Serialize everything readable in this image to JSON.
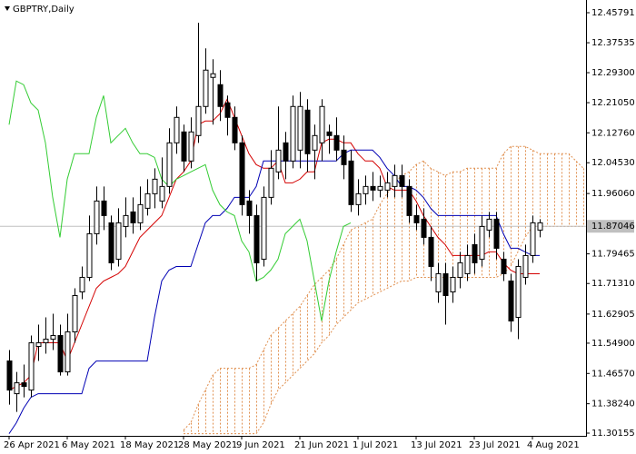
{
  "chart_data": {
    "type": "candlestick",
    "title": "GBPTRY,Daily",
    "categories": [
      "26 Apr 2021",
      null,
      null,
      null,
      null,
      null,
      null,
      null,
      "6 May 2021",
      null,
      null,
      null,
      null,
      null,
      null,
      null,
      "18 May 2021",
      null,
      null,
      null,
      null,
      null,
      null,
      null,
      "28 May 2021",
      null,
      null,
      null,
      null,
      null,
      null,
      null,
      "9 Jun 2021",
      null,
      null,
      null,
      null,
      null,
      null,
      null,
      "21 Jun 2021",
      null,
      null,
      null,
      null,
      null,
      null,
      null,
      "1 Jul 2021",
      null,
      null,
      null,
      null,
      null,
      null,
      null,
      "13 Jul 2021",
      null,
      null,
      null,
      null,
      null,
      null,
      null,
      "23 Jul 2021",
      null,
      null,
      null,
      null,
      null,
      null,
      null,
      "4 Aug 2021",
      null,
      null,
      null,
      null,
      null,
      null,
      null
    ],
    "open": [
      11.5,
      11.41,
      11.44,
      11.42,
      11.54,
      11.55,
      11.56,
      11.57,
      11.47,
      11.58,
      11.69,
      11.73,
      11.85,
      11.94,
      11.88,
      11.78,
      11.87,
      11.91,
      11.88,
      11.92,
      11.96,
      11.94,
      11.98,
      12.1,
      12.13,
      12.05,
      12.12,
      12.2,
      12.28,
      12.26,
      12.21,
      12.17,
      12.1,
      11.94,
      11.9,
      11.78,
      11.95,
      12.02,
      12.1,
      12.05,
      12.08,
      12.19,
      12.08,
      12.1,
      12.13,
      12.12,
      12.08,
      12.05,
      11.93,
      11.96,
      11.98,
      11.97,
      11.97,
      11.98,
      12.01,
      11.98,
      11.9,
      11.89,
      11.84,
      11.69,
      11.74,
      11.69,
      11.73,
      11.74,
      11.82,
      11.78,
      11.86,
      11.89,
      11.78,
      11.72,
      11.62,
      11.73,
      11.79,
      11.86,
      null,
      null,
      null,
      null,
      null,
      null
    ],
    "high": [
      11.53,
      11.47,
      11.49,
      11.57,
      11.6,
      11.62,
      11.63,
      11.6,
      11.63,
      11.7,
      11.76,
      11.9,
      11.98,
      11.98,
      11.9,
      11.92,
      11.95,
      11.95,
      11.98,
      12.0,
      12.03,
      12.06,
      12.14,
      12.2,
      12.15,
      12.17,
      12.43,
      12.36,
      12.33,
      12.3,
      12.23,
      12.2,
      12.12,
      11.97,
      11.93,
      11.98,
      12.08,
      12.2,
      12.13,
      12.23,
      12.24,
      12.22,
      12.15,
      12.22,
      12.15,
      12.17,
      12.12,
      12.08,
      12.0,
      12.01,
      12.02,
      12.01,
      12.02,
      12.04,
      12.04,
      12.0,
      11.93,
      11.92,
      11.87,
      11.77,
      11.77,
      11.76,
      11.8,
      11.82,
      11.85,
      11.9,
      11.91,
      11.91,
      11.8,
      11.74,
      11.78,
      11.82,
      11.9,
      11.89,
      null,
      null,
      null,
      null,
      null,
      null
    ],
    "low": [
      11.38,
      11.36,
      11.4,
      11.4,
      11.5,
      11.52,
      11.53,
      11.46,
      11.46,
      11.55,
      11.67,
      11.72,
      11.82,
      11.86,
      11.75,
      11.76,
      11.84,
      11.85,
      11.86,
      11.9,
      11.92,
      11.92,
      11.96,
      12.07,
      12.02,
      12.03,
      12.1,
      12.18,
      12.15,
      12.16,
      12.12,
      12.08,
      11.9,
      11.85,
      11.72,
      11.76,
      11.93,
      12.0,
      12.0,
      12.03,
      12.03,
      12.02,
      12.0,
      12.05,
      12.07,
      12.05,
      12.0,
      11.91,
      11.9,
      11.93,
      11.94,
      11.95,
      11.95,
      11.95,
      11.95,
      11.88,
      11.86,
      11.82,
      11.72,
      11.66,
      11.6,
      11.66,
      11.7,
      11.72,
      11.74,
      11.76,
      11.84,
      11.78,
      11.72,
      11.58,
      11.56,
      11.71,
      11.77,
      11.84,
      null,
      null,
      null,
      null,
      null,
      null
    ],
    "close": [
      11.42,
      11.44,
      11.43,
      11.55,
      11.55,
      11.56,
      11.57,
      11.47,
      11.58,
      11.68,
      11.73,
      11.85,
      11.94,
      11.9,
      11.77,
      11.88,
      11.9,
      11.88,
      11.93,
      11.96,
      12.0,
      11.98,
      12.1,
      12.17,
      12.05,
      12.13,
      12.2,
      12.3,
      12.29,
      12.2,
      12.17,
      12.1,
      11.93,
      11.9,
      11.77,
      11.95,
      12.03,
      12.08,
      12.05,
      12.2,
      12.2,
      12.07,
      12.12,
      12.2,
      12.12,
      12.08,
      12.04,
      11.93,
      11.96,
      11.98,
      11.97,
      11.98,
      11.99,
      12.01,
      11.98,
      11.9,
      11.88,
      11.84,
      11.76,
      11.74,
      11.68,
      11.73,
      11.77,
      11.79,
      11.77,
      11.87,
      11.89,
      11.81,
      11.74,
      11.61,
      11.76,
      11.79,
      11.88,
      11.88,
      null,
      null,
      null,
      null,
      null,
      null
    ],
    "up_color": "#ffffff",
    "down_color": "#000000",
    "series": [
      {
        "color": "#d40000",
        "values": [
          11.42,
          11.43,
          11.44,
          11.46,
          11.55,
          11.55,
          11.55,
          11.55,
          11.5,
          11.55,
          11.6,
          11.65,
          11.7,
          11.72,
          11.73,
          11.74,
          11.76,
          11.8,
          11.84,
          11.86,
          11.88,
          11.9,
          11.95,
          12.0,
          12.02,
          12.05,
          12.15,
          12.16,
          12.16,
          12.18,
          12.22,
          12.17,
          12.12,
          12.07,
          12.04,
          12.03,
          12.03,
          12.05,
          11.99,
          11.99,
          12.0,
          12.02,
          12.02,
          12.1,
          12.11,
          12.11,
          12.1,
          12.1,
          12.07,
          12.05,
          12.05,
          12.03,
          11.98,
          11.97,
          11.97,
          11.97,
          11.94,
          11.9,
          11.87,
          11.84,
          11.82,
          11.79,
          11.79,
          11.79,
          11.79,
          11.79,
          11.8,
          11.8,
          11.77,
          11.75,
          11.74,
          11.74,
          11.74,
          11.74,
          null,
          null,
          null,
          null,
          null,
          null
        ]
      },
      {
        "color": "#0000b4",
        "values": [
          11.3,
          11.33,
          11.37,
          11.4,
          11.41,
          11.41,
          11.41,
          11.41,
          11.41,
          11.41,
          11.41,
          11.48,
          11.5,
          11.5,
          11.5,
          11.5,
          11.5,
          11.5,
          11.5,
          11.5,
          11.62,
          11.72,
          11.75,
          11.76,
          11.76,
          11.76,
          11.82,
          11.88,
          11.9,
          11.9,
          11.92,
          11.95,
          11.95,
          11.95,
          11.98,
          12.05,
          12.05,
          12.05,
          12.05,
          12.05,
          12.05,
          12.05,
          12.05,
          12.05,
          12.05,
          12.05,
          12.07,
          12.08,
          12.08,
          12.08,
          12.08,
          12.06,
          12.03,
          12.01,
          11.98,
          11.98,
          11.97,
          11.95,
          11.92,
          11.9,
          11.9,
          11.9,
          11.9,
          11.9,
          11.9,
          11.9,
          11.9,
          11.9,
          11.85,
          11.81,
          11.81,
          11.8,
          11.79,
          11.79,
          null,
          null,
          null,
          null,
          null,
          null
        ]
      },
      {
        "color": "#33cc33",
        "values": [
          12.15,
          12.27,
          12.26,
          12.21,
          12.19,
          12.1,
          11.95,
          11.84,
          12.0,
          12.07,
          12.07,
          12.07,
          12.17,
          12.23,
          12.1,
          12.12,
          12.14,
          12.1,
          12.07,
          12.07,
          12.06,
          12.0,
          11.98,
          12.0,
          12.01,
          12.02,
          12.03,
          12.04,
          11.97,
          11.93,
          11.91,
          11.9,
          11.83,
          11.8,
          11.72,
          11.73,
          11.75,
          11.78,
          11.85,
          11.87,
          11.89,
          11.83,
          11.72,
          11.61,
          11.72,
          11.8,
          11.87,
          11.88,
          null,
          null,
          null,
          null,
          null,
          null,
          null,
          null,
          null,
          null,
          null,
          null,
          null,
          null,
          null,
          null,
          null,
          null,
          null,
          null,
          null,
          null,
          null,
          null,
          null,
          null,
          null,
          null,
          null,
          null,
          null,
          null
        ]
      }
    ],
    "cloud": {
      "color": "#e09050",
      "upper": [
        null,
        null,
        null,
        null,
        null,
        null,
        null,
        null,
        null,
        null,
        null,
        null,
        null,
        null,
        null,
        null,
        null,
        null,
        null,
        null,
        null,
        null,
        null,
        null,
        11.31,
        11.33,
        11.38,
        11.42,
        11.46,
        11.48,
        11.48,
        11.48,
        11.48,
        11.48,
        11.49,
        11.53,
        11.57,
        11.59,
        11.61,
        11.63,
        11.65,
        11.68,
        11.71,
        11.73,
        11.75,
        11.78,
        11.82,
        11.86,
        11.87,
        11.88,
        11.89,
        11.93,
        11.96,
        11.99,
        12.01,
        12.02,
        12.04,
        12.05,
        12.03,
        12.02,
        12.01,
        12.02,
        12.02,
        12.03,
        12.03,
        12.03,
        12.03,
        12.03,
        12.07,
        12.09,
        12.09,
        12.09,
        12.08,
        12.07,
        12.07,
        12.07,
        12.07,
        12.07,
        12.05,
        12.03
      ],
      "lower": [
        null,
        null,
        null,
        null,
        null,
        null,
        null,
        null,
        null,
        null,
        null,
        null,
        null,
        null,
        null,
        null,
        null,
        null,
        null,
        null,
        null,
        null,
        null,
        null,
        11.3,
        11.3,
        11.3,
        11.3,
        11.3,
        11.3,
        11.3,
        11.3,
        11.3,
        11.3,
        11.3,
        11.33,
        11.38,
        11.42,
        11.44,
        11.46,
        11.48,
        11.5,
        11.52,
        11.55,
        11.57,
        11.6,
        11.62,
        11.64,
        11.66,
        11.67,
        11.68,
        11.69,
        11.7,
        11.71,
        11.72,
        11.72,
        11.73,
        11.73,
        11.73,
        11.73,
        11.73,
        11.73,
        11.73,
        11.73,
        11.73,
        11.73,
        11.73,
        11.73,
        11.74,
        11.76,
        11.8,
        11.84,
        11.87,
        11.87,
        11.87,
        11.87,
        11.87,
        11.87,
        11.87,
        11.87
      ]
    },
    "last_price": 11.87046,
    "ylim": [
      11.2941,
      12.4929
    ],
    "yticks": [
      12.45791,
      12.37535,
      {
        "value": 12.293,
        "label": "12.29300"
      },
      {
        "value": 12.2105,
        "label": "12.21050"
      },
      {
        "value": 12.1276,
        "label": "12.12760"
      },
      {
        "value": 12.0453,
        "label": "12.04530"
      },
      {
        "value": 11.9606,
        "label": "11.96060"
      },
      11.79465,
      {
        "value": 11.7131,
        "label": "11.71310"
      },
      11.62905,
      {
        "value": 11.549,
        "label": "11.54900"
      },
      {
        "value": 11.4657,
        "label": "11.46570"
      },
      {
        "value": 11.3824,
        "label": "11.38240"
      },
      11.30155
    ]
  }
}
